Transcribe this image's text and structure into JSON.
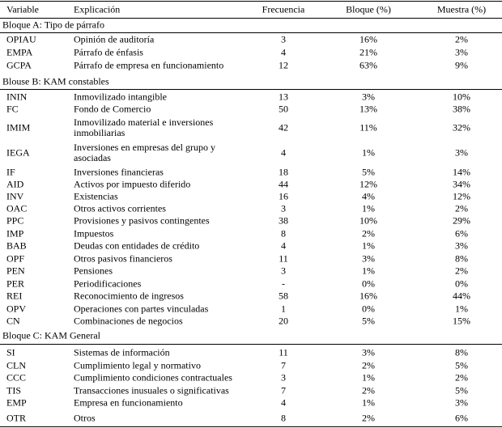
{
  "header": [
    "Variable",
    "Explicación",
    "Frecuencia",
    "Bloque (%)",
    "Muestra (%)"
  ],
  "sections": [
    {
      "title": "Bloque A: Tipo de párrafo",
      "rows": [
        [
          "OPIAU",
          "Opinión de auditoría",
          "3",
          "16%",
          "2%"
        ],
        [
          "EMPA",
          "Párrafo de énfasis",
          "4",
          "21%",
          "3%"
        ],
        [
          "GCPA",
          "Párrafo de empresa en funcionamiento",
          "12",
          "63%",
          "9%"
        ]
      ]
    },
    {
      "title": "Blouse B: KAM  constables",
      "rows": [
        [
          "ININ",
          "Inmovilizado intangible",
          "13",
          "3%",
          "10%"
        ],
        [
          "FC",
          "Fondo de Comercio",
          "50",
          "13%",
          "38%"
        ],
        [
          "IMIM",
          "Inmovilizado material e inversiones inmobiliarias",
          "42",
          "11%",
          "32%"
        ],
        [
          "IEGA",
          "Inversiones en empresas del grupo y asociadas",
          "4",
          "1%",
          "3%"
        ],
        [
          "IF",
          "Inversiones financieras",
          "18",
          "5%",
          "14%"
        ],
        [
          "AID",
          "Activos por impuesto diferido",
          "44",
          "12%",
          "34%"
        ],
        [
          "INV",
          "Existencias",
          "16",
          "4%",
          "12%"
        ],
        [
          "OAC",
          "Otros activos corrientes",
          "3",
          "1%",
          "2%"
        ],
        [
          "PPC",
          "Provisiones y pasivos contingentes",
          "38",
          "10%",
          "29%"
        ],
        [
          "IMP",
          "Impuestos",
          "8",
          "2%",
          "6%"
        ],
        [
          "BAB",
          "Deudas con entidades de crédito",
          "4",
          "1%",
          "3%"
        ],
        [
          "OPF",
          "Otros pasivos financieros",
          "11",
          "3%",
          "8%"
        ],
        [
          "PEN",
          "Pensiones",
          "3",
          "1%",
          "2%"
        ],
        [
          "PER",
          "Periodificaciones",
          "-",
          "0%",
          "0%"
        ],
        [
          "REI",
          "Reconocimiento de ingresos",
          "58",
          "16%",
          "44%"
        ],
        [
          "OPV",
          "Operaciones con partes vinculadas",
          "1",
          "0%",
          "1%"
        ],
        [
          "CN",
          "Combinaciones de negocios",
          "20",
          "5%",
          "15%"
        ]
      ]
    },
    {
      "title": "Bloque C: KAM General",
      "rows": [
        [
          "SI",
          "Sistemas de información",
          "11",
          "3%",
          "8%"
        ],
        [
          "CLN",
          "Cumplimiento legal y normativo",
          "7",
          "2%",
          "5%"
        ],
        [
          "CCC",
          "Cumplimiento condiciones contractuales",
          "3",
          "1%",
          "2%"
        ],
        [
          "TIS",
          "Transacciones inusuales o significativas",
          "7",
          "2%",
          "5%"
        ],
        [
          "EMP",
          "Empresa en funcionamiento",
          "4",
          "1%",
          "3%"
        ],
        [
          "OTR",
          "Otros",
          "8",
          "2%",
          "6%"
        ]
      ]
    }
  ]
}
